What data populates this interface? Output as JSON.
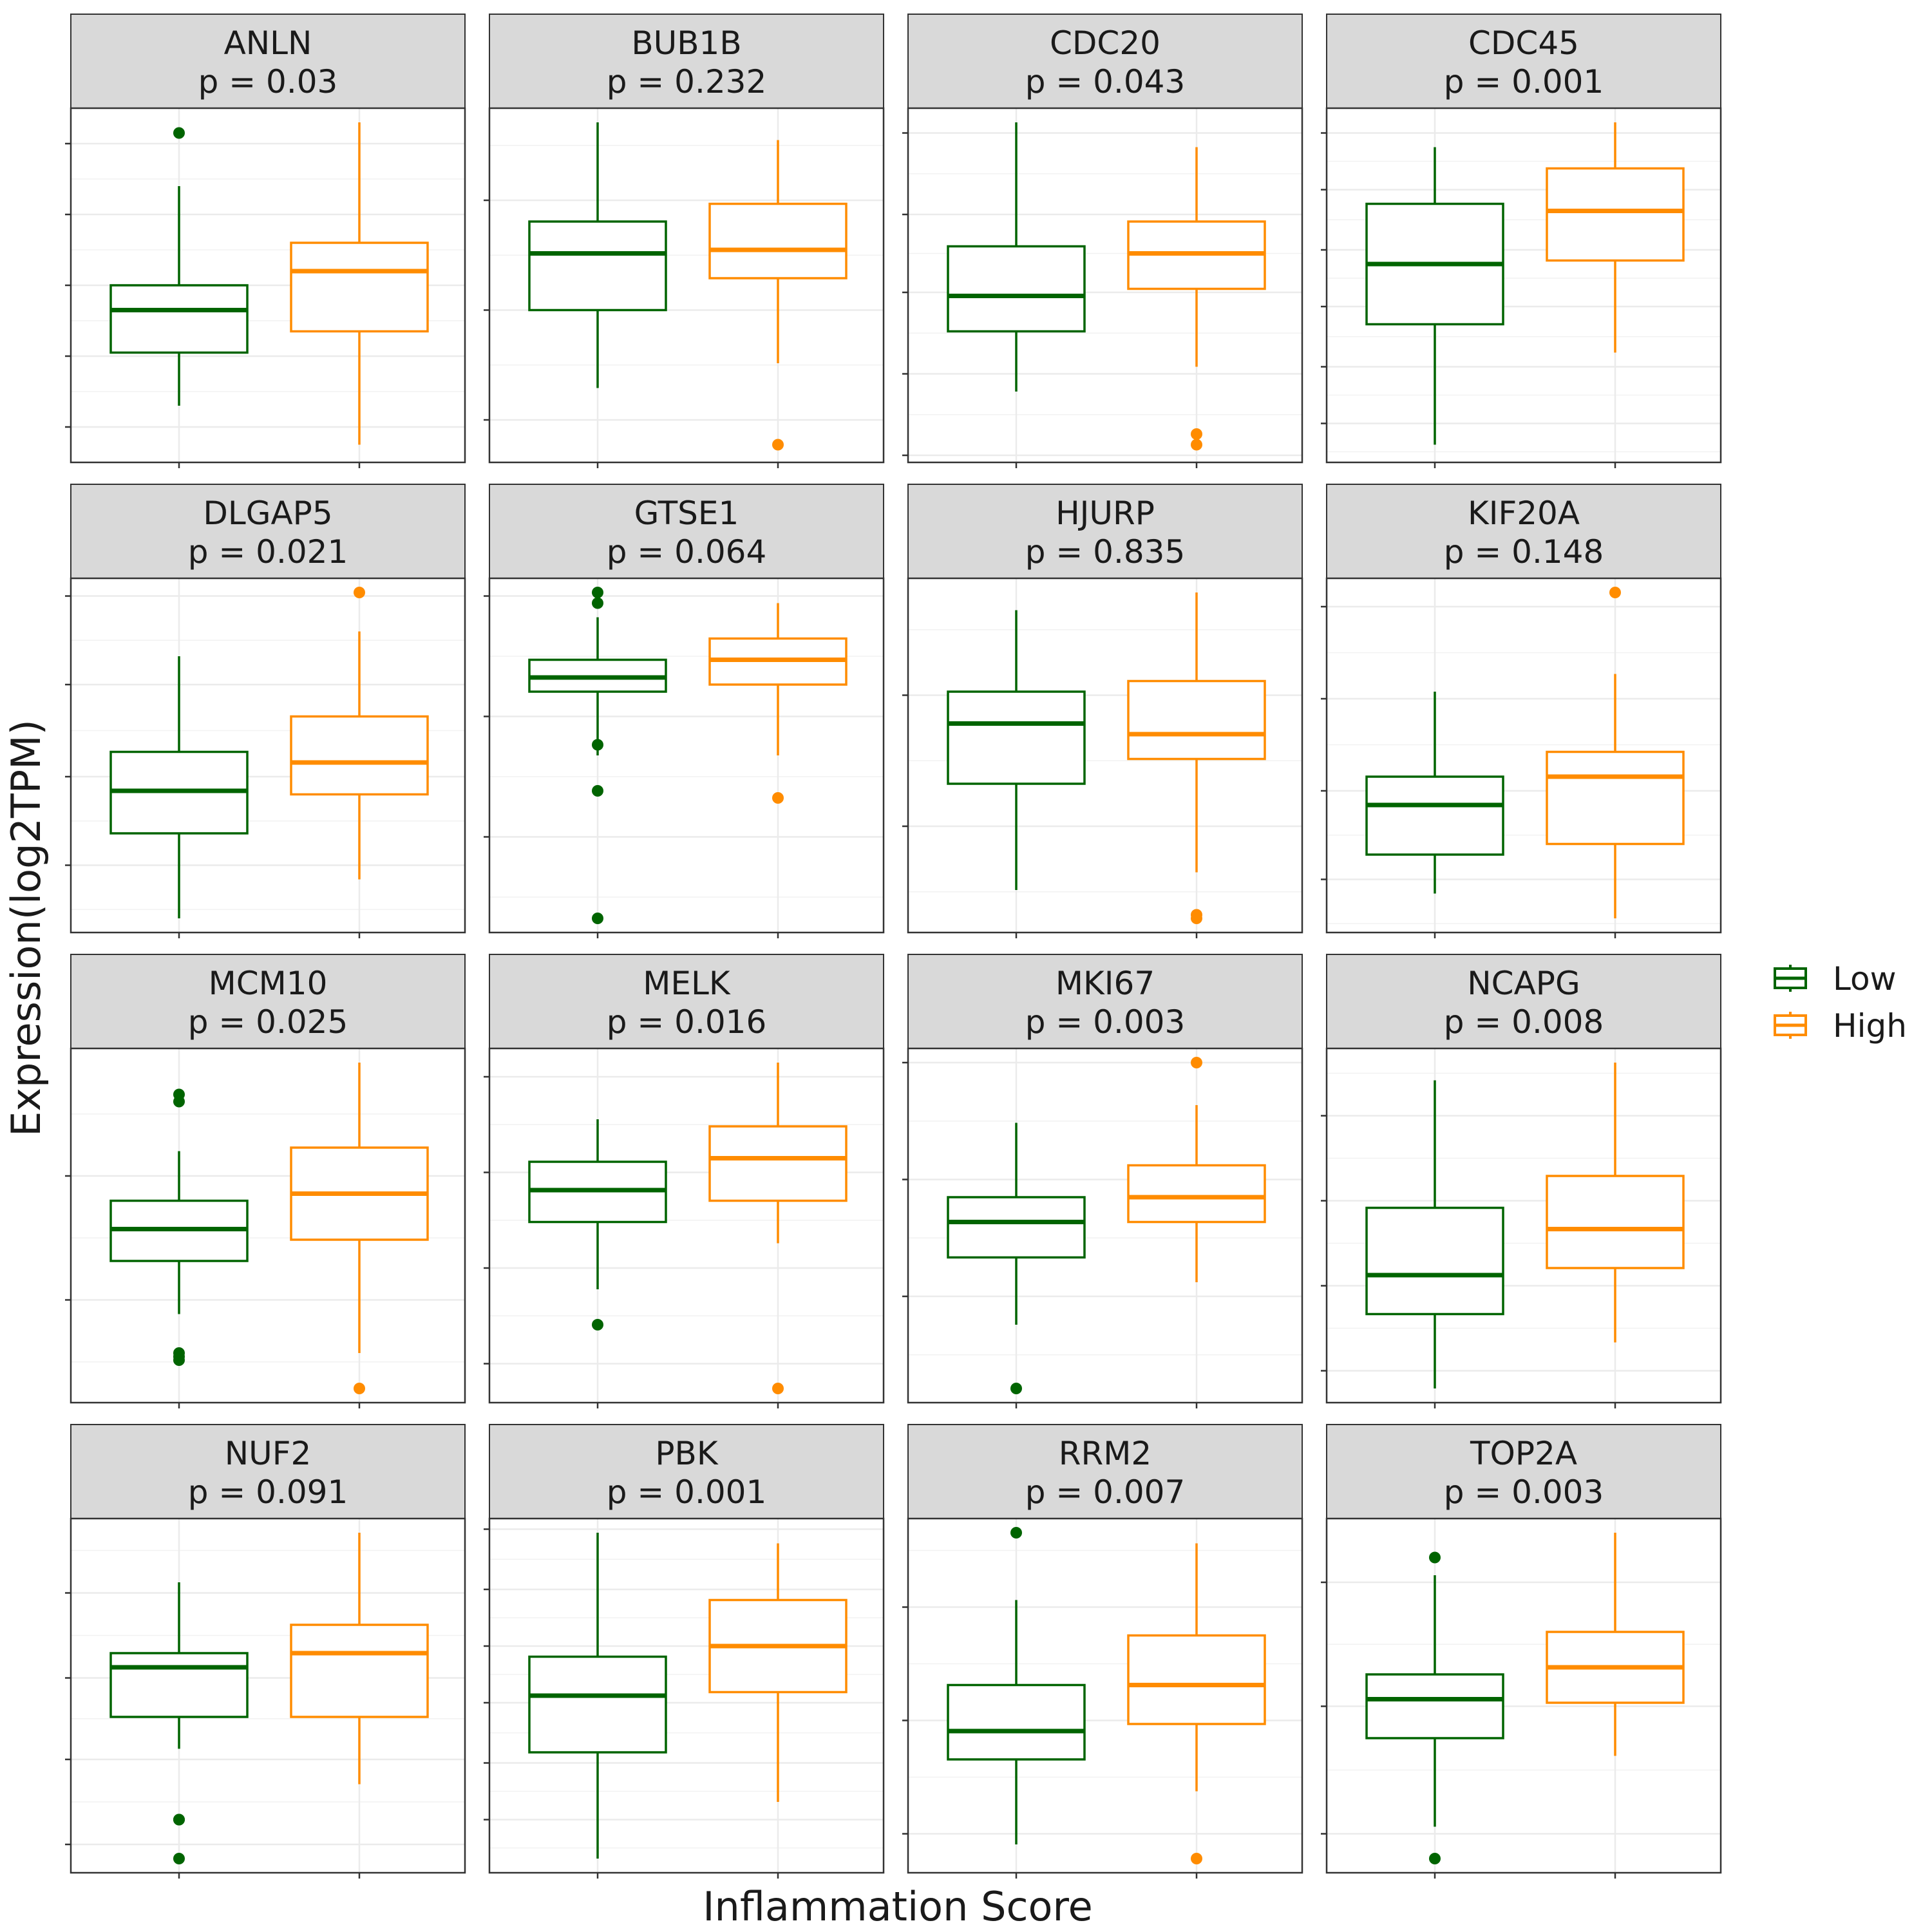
{
  "chart_data": {
    "type": "box",
    "xlabel": "Inflammation Score",
    "ylabel": "Expression(log2TPM)",
    "groups": [
      "Low",
      "High"
    ],
    "legend": {
      "placement": "right",
      "entries": [
        {
          "label": "Low",
          "color": "#006400"
        },
        {
          "label": "High",
          "color": "#FF8C00"
        }
      ]
    },
    "grid": true,
    "panels": [
      {
        "gene": "ANLN",
        "p_label": "p = 0.03",
        "yrange": [
          0,
          1
        ],
        "yticks": [
          0.1,
          0.3,
          0.5,
          0.7,
          0.9
        ],
        "low": {
          "min": 0.16,
          "q1": 0.31,
          "median": 0.43,
          "q3": 0.5,
          "max": 0.78,
          "outliers": [
            0.93
          ]
        },
        "high": {
          "min": 0.05,
          "q1": 0.37,
          "median": 0.54,
          "q3": 0.62,
          "max": 0.96,
          "outliers": []
        }
      },
      {
        "gene": "BUB1B",
        "p_label": "p = 0.232",
        "yrange": [
          0,
          1
        ],
        "yticks": [
          0.12,
          0.43,
          0.74
        ],
        "low": {
          "min": 0.21,
          "q1": 0.43,
          "median": 0.59,
          "q3": 0.68,
          "max": 0.96,
          "outliers": []
        },
        "high": {
          "min": 0.28,
          "q1": 0.52,
          "median": 0.6,
          "q3": 0.73,
          "max": 0.91,
          "outliers": [
            0.05
          ]
        }
      },
      {
        "gene": "CDC20",
        "p_label": "p = 0.043",
        "yrange": [
          0,
          1
        ],
        "yticks": [
          0.02,
          0.25,
          0.48,
          0.7,
          0.93
        ],
        "low": {
          "min": 0.2,
          "q1": 0.37,
          "median": 0.47,
          "q3": 0.61,
          "max": 0.96,
          "outliers": []
        },
        "high": {
          "min": 0.27,
          "q1": 0.49,
          "median": 0.59,
          "q3": 0.68,
          "max": 0.89,
          "outliers": [
            0.08,
            0.05
          ]
        }
      },
      {
        "gene": "CDC45",
        "p_label": "p = 0.001",
        "yrange": [
          0,
          1
        ],
        "yticks": [
          0.11,
          0.27,
          0.44,
          0.6,
          0.77,
          0.93
        ],
        "low": {
          "min": 0.05,
          "q1": 0.39,
          "median": 0.56,
          "q3": 0.73,
          "max": 0.89,
          "outliers": []
        },
        "high": {
          "min": 0.31,
          "q1": 0.57,
          "median": 0.71,
          "q3": 0.83,
          "max": 0.96,
          "outliers": []
        }
      },
      {
        "gene": "DLGAP5",
        "p_label": "p = 0.021",
        "yrange": [
          0,
          1
        ],
        "yticks": [
          0.19,
          0.44,
          0.7,
          0.95
        ],
        "low": {
          "min": 0.04,
          "q1": 0.28,
          "median": 0.4,
          "q3": 0.51,
          "max": 0.78,
          "outliers": []
        },
        "high": {
          "min": 0.15,
          "q1": 0.39,
          "median": 0.48,
          "q3": 0.61,
          "max": 0.85,
          "outliers": [
            0.96
          ]
        }
      },
      {
        "gene": "GTSE1",
        "p_label": "p = 0.064",
        "yrange": [
          0,
          1
        ],
        "yticks": [
          0.27,
          0.61,
          0.95
        ],
        "low": {
          "min": 0.5,
          "q1": 0.68,
          "median": 0.72,
          "q3": 0.77,
          "max": 0.89,
          "outliers": [
            0.96,
            0.93,
            0.53,
            0.4,
            0.04
          ]
        },
        "high": {
          "min": 0.5,
          "q1": 0.7,
          "median": 0.77,
          "q3": 0.83,
          "max": 0.93,
          "outliers": [
            0.38
          ]
        }
      },
      {
        "gene": "HJURP",
        "p_label": "p = 0.835",
        "yrange": [
          0,
          1
        ],
        "yticks": [
          0.3,
          0.67
        ],
        "low": {
          "min": 0.12,
          "q1": 0.42,
          "median": 0.59,
          "q3": 0.68,
          "max": 0.91,
          "outliers": []
        },
        "high": {
          "min": 0.17,
          "q1": 0.49,
          "median": 0.56,
          "q3": 0.71,
          "max": 0.96,
          "outliers": [
            0.05,
            0.04
          ]
        }
      },
      {
        "gene": "KIF20A",
        "p_label": "p = 0.148",
        "yrange": [
          0,
          1
        ],
        "yticks": [
          0.15,
          0.4,
          0.66,
          0.92
        ],
        "low": {
          "min": 0.11,
          "q1": 0.22,
          "median": 0.36,
          "q3": 0.44,
          "max": 0.68,
          "outliers": []
        },
        "high": {
          "min": 0.04,
          "q1": 0.25,
          "median": 0.44,
          "q3": 0.51,
          "max": 0.73,
          "outliers": [
            0.96
          ]
        }
      },
      {
        "gene": "MCM10",
        "p_label": "p = 0.025",
        "yrange": [
          0,
          1
        ],
        "yticks": [
          0.29,
          0.64
        ],
        "low": {
          "min": 0.25,
          "q1": 0.4,
          "median": 0.49,
          "q3": 0.57,
          "max": 0.71,
          "outliers": [
            0.87,
            0.85,
            0.14,
            0.13,
            0.12
          ]
        },
        "high": {
          "min": 0.14,
          "q1": 0.46,
          "median": 0.59,
          "q3": 0.72,
          "max": 0.96,
          "outliers": [
            0.04
          ]
        }
      },
      {
        "gene": "MELK",
        "p_label": "p = 0.016",
        "yrange": [
          0,
          1
        ],
        "yticks": [
          0.11,
          0.38,
          0.65,
          0.92
        ],
        "low": {
          "min": 0.32,
          "q1": 0.51,
          "median": 0.6,
          "q3": 0.68,
          "max": 0.8,
          "outliers": [
            0.22
          ]
        },
        "high": {
          "min": 0.45,
          "q1": 0.57,
          "median": 0.69,
          "q3": 0.78,
          "max": 0.96,
          "outliers": [
            0.04
          ]
        }
      },
      {
        "gene": "MKI67",
        "p_label": "p = 0.003",
        "yrange": [
          0,
          1
        ],
        "yticks": [
          0.3,
          0.63,
          0.96
        ],
        "low": {
          "min": 0.22,
          "q1": 0.41,
          "median": 0.51,
          "q3": 0.58,
          "max": 0.79,
          "outliers": [
            0.04
          ]
        },
        "high": {
          "min": 0.34,
          "q1": 0.51,
          "median": 0.58,
          "q3": 0.67,
          "max": 0.84,
          "outliers": [
            0.96
          ]
        }
      },
      {
        "gene": "NCAPG",
        "p_label": "p = 0.008",
        "yrange": [
          0,
          1
        ],
        "yticks": [
          0.09,
          0.33,
          0.57,
          0.81
        ],
        "low": {
          "min": 0.04,
          "q1": 0.25,
          "median": 0.36,
          "q3": 0.55,
          "max": 0.91,
          "outliers": []
        },
        "high": {
          "min": 0.17,
          "q1": 0.38,
          "median": 0.49,
          "q3": 0.64,
          "max": 0.96,
          "outliers": []
        }
      },
      {
        "gene": "NUF2",
        "p_label": "p = 0.091",
        "yrange": [
          0,
          1
        ],
        "yticks": [
          0.08,
          0.32,
          0.55,
          0.79
        ],
        "low": {
          "min": 0.35,
          "q1": 0.44,
          "median": 0.58,
          "q3": 0.62,
          "max": 0.82,
          "outliers": [
            0.15,
            0.15,
            0.04
          ]
        },
        "high": {
          "min": 0.25,
          "q1": 0.44,
          "median": 0.62,
          "q3": 0.7,
          "max": 0.96,
          "outliers": []
        }
      },
      {
        "gene": "PBK",
        "p_label": "p = 0.001",
        "yrange": [
          0,
          1
        ],
        "yticks": [
          0.15,
          0.31,
          0.48,
          0.64,
          0.8,
          0.97
        ],
        "low": {
          "min": 0.04,
          "q1": 0.34,
          "median": 0.5,
          "q3": 0.61,
          "max": 0.96,
          "outliers": []
        },
        "high": {
          "min": 0.2,
          "q1": 0.51,
          "median": 0.64,
          "q3": 0.77,
          "max": 0.93,
          "outliers": []
        }
      },
      {
        "gene": "RRM2",
        "p_label": "p = 0.007",
        "yrange": [
          0,
          1
        ],
        "yticks": [
          0.11,
          0.43,
          0.75
        ],
        "low": {
          "min": 0.08,
          "q1": 0.32,
          "median": 0.4,
          "q3": 0.53,
          "max": 0.77,
          "outliers": [
            0.96
          ]
        },
        "high": {
          "min": 0.23,
          "q1": 0.42,
          "median": 0.53,
          "q3": 0.67,
          "max": 0.93,
          "outliers": [
            0.04
          ]
        }
      },
      {
        "gene": "TOP2A",
        "p_label": "p = 0.003",
        "yrange": [
          0,
          1
        ],
        "yticks": [
          0.11,
          0.47,
          0.82
        ],
        "low": {
          "min": 0.13,
          "q1": 0.38,
          "median": 0.49,
          "q3": 0.56,
          "max": 0.84,
          "outliers": [
            0.89,
            0.04
          ]
        },
        "high": {
          "min": 0.33,
          "q1": 0.48,
          "median": 0.58,
          "q3": 0.68,
          "max": 0.96,
          "outliers": []
        }
      }
    ]
  }
}
